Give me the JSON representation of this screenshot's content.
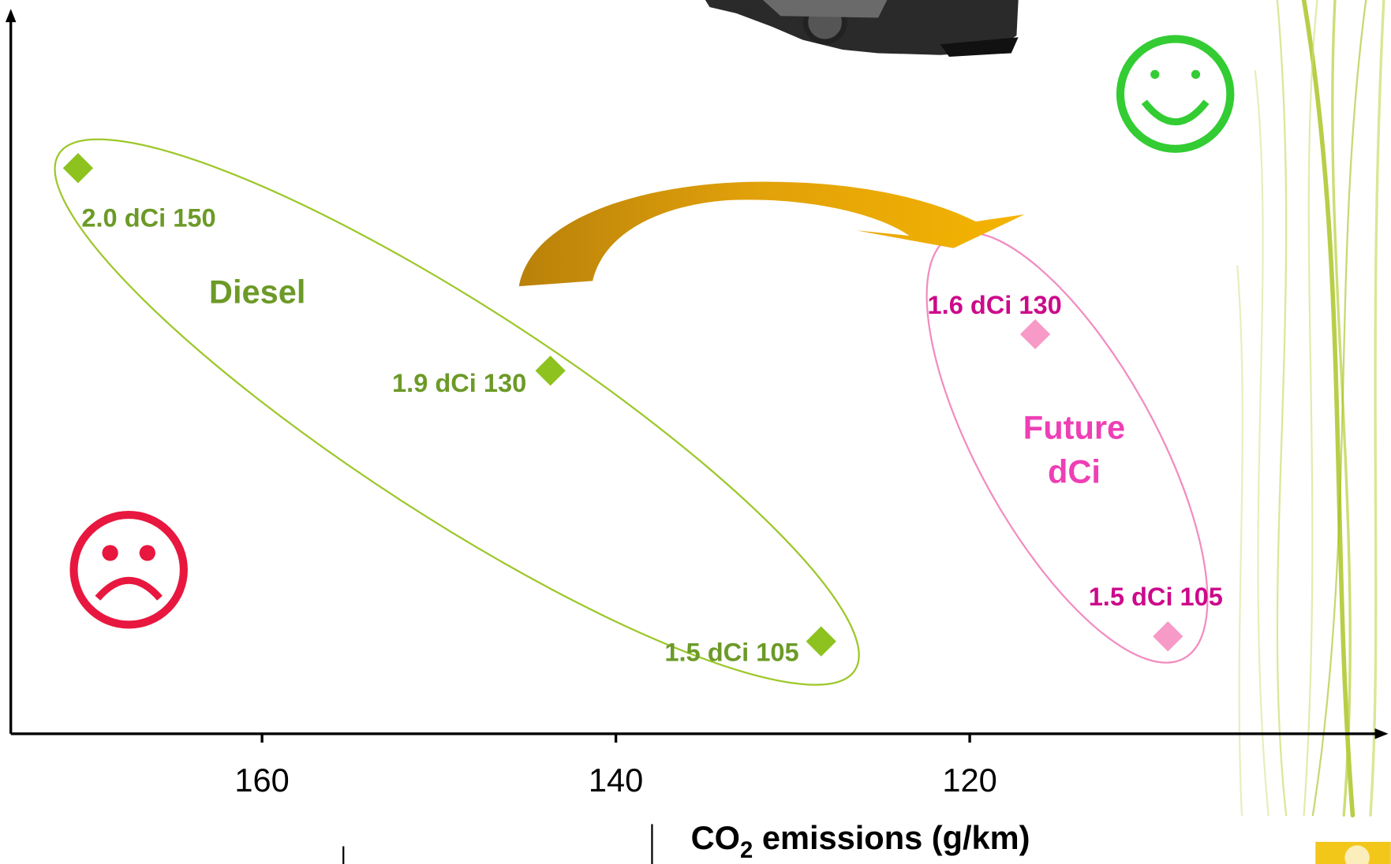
{
  "chart_data": {
    "type": "scatter",
    "x_label": {
      "main": "CO",
      "sub": "2",
      "rest": " emissions (g/km)"
    },
    "xlim": [
      174.2,
      96.6
    ],
    "xticks": [
      160,
      140,
      120
    ],
    "ylim": [
      0,
      100
    ],
    "series": [
      {
        "name": "Diesel",
        "color": "#8dc21f",
        "label_color": "#6c9a27",
        "labels": [
          "2.0 dCi 150",
          "1.9 dCi 130",
          "1.5 dCi 105"
        ],
        "x": [
          170.4,
          143.7,
          128.4
        ],
        "values": [
          79,
          50.7,
          12.9
        ]
      },
      {
        "name": "Future dCi",
        "color": "#f79ac7",
        "label_color": "#cc0a8a",
        "labels": [
          "1.6 dCi 130",
          "1.5 dCi 105"
        ],
        "x": [
          116.3,
          108.8
        ],
        "values": [
          55.8,
          13.6
        ]
      }
    ]
  }
}
